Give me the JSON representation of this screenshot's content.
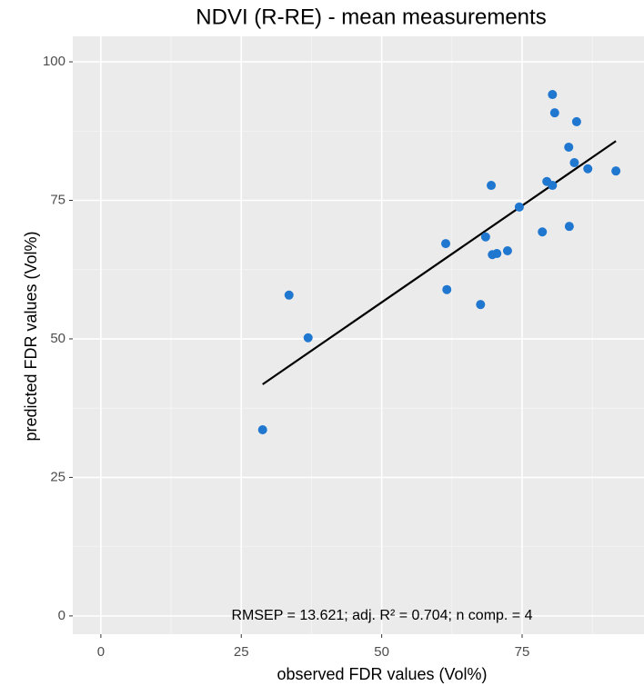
{
  "chart_data": {
    "type": "scatter",
    "title": "NDVI (R-RE) - mean measurements",
    "x_label": "observed FDR values (Vol%)",
    "y_label": "predicted FDR values (Vol%)",
    "annotation": "RMSEP = 13.621;  adj. R² = 0.704;  n comp. = 4",
    "x": [
      28.8,
      33.5,
      36.9,
      61.4,
      61.6,
      67.6,
      68.5,
      69.5,
      69.7,
      70.5,
      72.4,
      74.5,
      78.6,
      79.4,
      80.4,
      80.4,
      80.8,
      83.3,
      83.4,
      84.3,
      84.7,
      86.7,
      91.7
    ],
    "values": [
      33.6,
      57.9,
      50.2,
      67.2,
      58.9,
      56.2,
      68.4,
      77.7,
      65.2,
      65.4,
      65.9,
      73.8,
      69.3,
      78.4,
      77.7,
      94.1,
      90.8,
      84.6,
      70.3,
      81.8,
      89.2,
      80.7,
      80.3
    ],
    "color": "#1f77d0",
    "fit": {
      "x": [
        28.8,
        91.7
      ],
      "values": [
        41.8,
        85.7
      ],
      "color": "#000000"
    },
    "xlim": [
      -5,
      96.7
    ],
    "ylim": [
      -3.3,
      104.6
    ],
    "xticks": [
      0,
      25,
      50,
      75
    ],
    "yticks": [
      0,
      25,
      50,
      75,
      100
    ],
    "xminorticks": [
      12.5,
      37.5,
      62.5,
      87.5
    ],
    "yminorticks": [
      12.5,
      37.5,
      62.5,
      87.5
    ],
    "grid": true
  }
}
